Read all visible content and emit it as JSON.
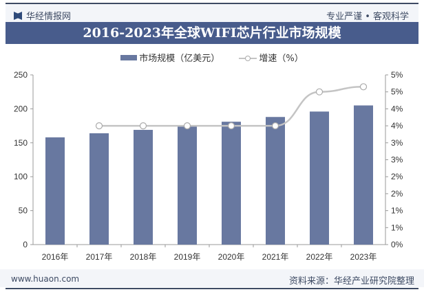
{
  "header": {
    "brand": "华经情报网",
    "slogan": "专业严谨 • 客观科学"
  },
  "footer": {
    "url": "www.huaon.com",
    "source": "资料来源：华经产业研究院整理"
  },
  "colors": {
    "bar": "#6878a0",
    "line": "#c4c4c4",
    "title_bg": "#485c8c"
  },
  "chart_data": {
    "type": "bar+line",
    "title": "2016-2023年全球WIFI芯片行业市场规模",
    "categories": [
      "2016年",
      "2017年",
      "2018年",
      "2019年",
      "2020年",
      "2021年",
      "2022年",
      "2023年"
    ],
    "series": [
      {
        "name": "市场规模（亿美元）",
        "type": "bar",
        "axis": "left",
        "values": [
          158,
          164,
          169,
          174,
          181,
          188,
          196,
          205
        ]
      },
      {
        "name": "增速（%）",
        "type": "line",
        "axis": "right",
        "values": [
          null,
          3.5,
          3.5,
          3.5,
          3.5,
          3.5,
          4.5,
          4.65
        ]
      }
    ],
    "left_axis": {
      "range": [
        0,
        250
      ],
      "ticks": [
        "0",
        "50",
        "100",
        "150",
        "200",
        "250"
      ]
    },
    "right_axis": {
      "range": [
        0,
        5
      ],
      "ticks": [
        "0%",
        "1%",
        "1%",
        "2%",
        "2%",
        "3%",
        "3%",
        "4%",
        "4%",
        "5%",
        "5%"
      ]
    },
    "legend": "top",
    "grid": false
  }
}
